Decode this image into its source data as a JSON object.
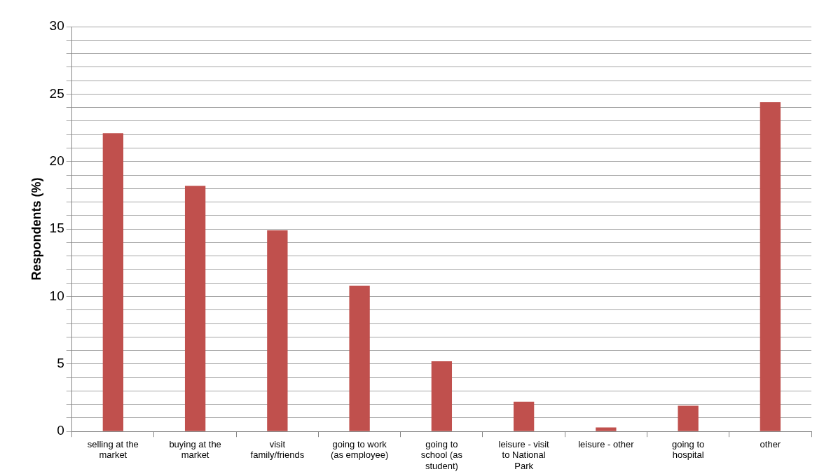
{
  "chart_data": {
    "type": "bar",
    "ylabel": "Respondents (%)",
    "categories": [
      "selling at the market",
      "buying at the market",
      "visit family/friends",
      "going to work (as employee)",
      "going to school (as student)",
      "leisure - visit to National Park",
      "leisure - other",
      "going to hospital",
      "other"
    ],
    "values": [
      22.1,
      18.2,
      14.9,
      10.8,
      5.2,
      2.2,
      0.3,
      1.9,
      24.4
    ],
    "color": "#c0504d",
    "ylim": [
      0,
      30
    ],
    "yticks": [
      0,
      {
        "value": 1,
        "label": null
      },
      {
        "value": 2,
        "label": null
      },
      {
        "value": 3,
        "label": null
      },
      {
        "value": 4,
        "label": null
      },
      5,
      {
        "value": 6,
        "label": null
      },
      {
        "value": 7,
        "label": null
      },
      {
        "value": 8,
        "label": null
      },
      {
        "value": 9,
        "label": null
      },
      10,
      {
        "value": 11,
        "label": null
      },
      {
        "value": 12,
        "label": null
      },
      {
        "value": 13,
        "label": null
      },
      {
        "value": 14,
        "label": null
      },
      15,
      {
        "value": 16,
        "label": null
      },
      {
        "value": 17,
        "label": null
      },
      {
        "value": 18,
        "label": null
      },
      {
        "value": 19,
        "label": null
      },
      20,
      {
        "value": 21,
        "label": null
      },
      {
        "value": 22,
        "label": null
      },
      {
        "value": 23,
        "label": null
      },
      {
        "value": 24,
        "label": null
      },
      25,
      {
        "value": 26,
        "label": null
      },
      {
        "value": 27,
        "label": null
      },
      {
        "value": 28,
        "label": null
      },
      {
        "value": 29,
        "label": null
      },
      30
    ],
    "grid": true,
    "legend": false
  }
}
